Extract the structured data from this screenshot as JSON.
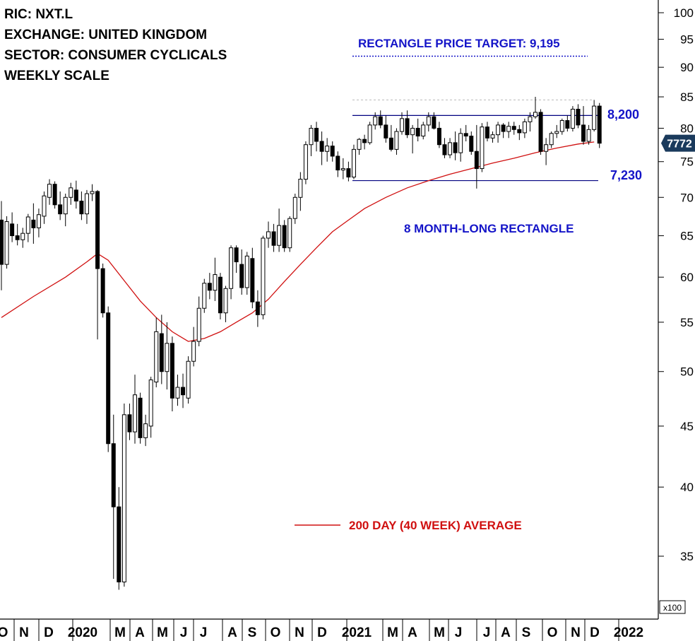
{
  "header": {
    "ric": "RIC: NXT.L",
    "exchange": "EXCHANGE: UNITED KINGDOM",
    "sector": "SECTOR: CONSUMER CYCLICALS",
    "scale": "WEEKLY SCALE"
  },
  "colors": {
    "candle": "#000000",
    "average": "#d01010",
    "annotation": "#1414c8",
    "rectangle": "#000080"
  },
  "chart_data": {
    "type": "candlestick",
    "y_scale": "log",
    "y_multiplier_label": "x100",
    "ylim": [
      32,
      104
    ],
    "y_ticks": [
      35,
      40,
      45,
      50,
      55,
      60,
      65,
      70,
      75,
      80,
      85,
      90,
      95,
      100
    ],
    "x_ticks": [
      "O",
      "N",
      "D",
      "2020",
      "M",
      "A",
      "M",
      "J",
      "J",
      "A",
      "S",
      "O",
      "N",
      "D",
      "2021",
      "M",
      "A",
      "M",
      "J",
      "J",
      "A",
      "S",
      "O",
      "N",
      "D",
      "2022"
    ],
    "last_price_label": "7772",
    "last_price": 77.72,
    "resistance": {
      "label": "8,200",
      "value": 82.0
    },
    "support": {
      "label": "7,230",
      "value": 72.3
    },
    "target": {
      "label": "RECTANGLE PRICE TARGET: 9,195",
      "value": 91.95
    },
    "rectangle_label": "8 MONTH-LONG RECTANGLE",
    "average_label": "200 DAY (40 WEEK) AVERAGE",
    "candles": [
      [
        67.0,
        69.5,
        58.5,
        61.5
      ],
      [
        61.5,
        67.5,
        61.0,
        66.8
      ],
      [
        66.5,
        68.0,
        64.2,
        65.0
      ],
      [
        65.0,
        66.5,
        63.8,
        64.5
      ],
      [
        64.5,
        66.0,
        63.5,
        65.3
      ],
      [
        65.3,
        67.8,
        64.2,
        67.4
      ],
      [
        67.0,
        69.2,
        64.0,
        66.0
      ],
      [
        66.0,
        68.5,
        64.8,
        67.7
      ],
      [
        67.5,
        70.8,
        66.5,
        70.2
      ],
      [
        70.0,
        72.5,
        69.0,
        71.8
      ],
      [
        71.8,
        72.2,
        68.5,
        69.0
      ],
      [
        69.0,
        70.8,
        67.0,
        67.8
      ],
      [
        67.8,
        70.5,
        66.2,
        70.0
      ],
      [
        70.0,
        72.0,
        69.0,
        71.3
      ],
      [
        71.0,
        72.3,
        68.5,
        69.5
      ],
      [
        69.5,
        70.8,
        67.0,
        67.8
      ],
      [
        67.8,
        71.0,
        66.5,
        70.5
      ],
      [
        70.5,
        71.8,
        69.5,
        70.8
      ],
      [
        70.8,
        71.0,
        53.2,
        61.0
      ],
      [
        61.0,
        61.6,
        55.5,
        56.0
      ],
      [
        56.0,
        56.7,
        42.8,
        43.5
      ],
      [
        43.5,
        46.0,
        33.5,
        38.5
      ],
      [
        38.5,
        40.0,
        32.8,
        33.3
      ],
      [
        33.3,
        47.0,
        33.0,
        46.0
      ],
      [
        46.0,
        47.0,
        43.8,
        44.5
      ],
      [
        44.5,
        49.7,
        43.5,
        47.8
      ],
      [
        47.5,
        48.0,
        43.5,
        44.0
      ],
      [
        44.0,
        46.0,
        43.3,
        45.2
      ],
      [
        45.0,
        49.5,
        44.0,
        49.2
      ],
      [
        49.0,
        55.5,
        48.5,
        54.0
      ],
      [
        53.8,
        55.8,
        48.8,
        50.0
      ],
      [
        50.0,
        55.0,
        48.3,
        52.8
      ],
      [
        52.8,
        53.5,
        46.3,
        47.5
      ],
      [
        47.5,
        49.7,
        46.8,
        48.5
      ],
      [
        48.5,
        49.8,
        46.6,
        47.8
      ],
      [
        47.5,
        51.5,
        47.0,
        51.0
      ],
      [
        51.0,
        54.5,
        50.5,
        53.0
      ],
      [
        53.0,
        57.8,
        52.5,
        56.5
      ],
      [
        56.5,
        59.8,
        56.0,
        59.3
      ],
      [
        59.3,
        60.5,
        57.5,
        58.5
      ],
      [
        58.5,
        62.3,
        57.3,
        60.3
      ],
      [
        60.0,
        60.5,
        55.3,
        56.0
      ],
      [
        56.0,
        59.0,
        55.0,
        58.7
      ],
      [
        58.7,
        63.8,
        57.5,
        63.5
      ],
      [
        63.5,
        63.8,
        60.5,
        61.8
      ],
      [
        61.5,
        63.3,
        58.0,
        58.8
      ],
      [
        58.8,
        63.0,
        58.0,
        62.5
      ],
      [
        62.2,
        63.5,
        56.5,
        57.2
      ],
      [
        57.2,
        58.5,
        54.5,
        55.8
      ],
      [
        55.8,
        65.0,
        55.3,
        64.7
      ],
      [
        64.7,
        66.8,
        63.5,
        65.5
      ],
      [
        65.5,
        66.5,
        63.0,
        63.8
      ],
      [
        63.8,
        68.5,
        63.0,
        66.3
      ],
      [
        66.3,
        67.0,
        63.0,
        63.5
      ],
      [
        63.5,
        67.5,
        63.0,
        67.2
      ],
      [
        67.2,
        70.5,
        66.5,
        70.0
      ],
      [
        70.0,
        73.5,
        68.2,
        72.5
      ],
      [
        72.5,
        78.0,
        71.8,
        77.5
      ],
      [
        77.5,
        80.5,
        75.8,
        80.0
      ],
      [
        80.0,
        81.0,
        76.5,
        78.0
      ],
      [
        78.0,
        79.5,
        74.5,
        76.5
      ],
      [
        76.5,
        78.5,
        75.0,
        77.3
      ],
      [
        77.3,
        78.0,
        75.0,
        75.8
      ],
      [
        75.8,
        76.5,
        72.8,
        73.8
      ],
      [
        73.8,
        75.5,
        72.5,
        74.0
      ],
      [
        74.0,
        75.0,
        72.2,
        72.8
      ],
      [
        72.8,
        77.5,
        72.5,
        76.8
      ],
      [
        76.8,
        78.5,
        76.0,
        78.3
      ],
      [
        78.3,
        79.0,
        76.8,
        77.8
      ],
      [
        77.8,
        81.0,
        77.5,
        80.5
      ],
      [
        80.5,
        82.5,
        79.8,
        81.8
      ],
      [
        81.8,
        82.8,
        80.0,
        80.5
      ],
      [
        80.5,
        82.0,
        77.8,
        78.5
      ],
      [
        78.5,
        80.5,
        76.5,
        76.8
      ],
      [
        76.8,
        80.0,
        76.0,
        79.5
      ],
      [
        79.5,
        82.5,
        79.0,
        81.5
      ],
      [
        81.5,
        82.8,
        78.5,
        79.0
      ],
      [
        79.0,
        80.5,
        76.2,
        80.0
      ],
      [
        80.0,
        81.5,
        78.0,
        78.8
      ],
      [
        78.8,
        81.0,
        78.3,
        80.5
      ],
      [
        80.5,
        82.5,
        79.5,
        81.8
      ],
      [
        81.8,
        82.5,
        79.8,
        80.0
      ],
      [
        80.0,
        81.0,
        77.0,
        77.5
      ],
      [
        77.5,
        78.5,
        75.5,
        76.0
      ],
      [
        76.0,
        78.5,
        75.5,
        77.8
      ],
      [
        77.8,
        79.5,
        75.2,
        76.3
      ],
      [
        76.3,
        80.0,
        75.0,
        79.2
      ],
      [
        79.2,
        80.5,
        78.0,
        78.8
      ],
      [
        78.8,
        79.5,
        76.0,
        76.5
      ],
      [
        76.5,
        80.5,
        71.2,
        74.0
      ],
      [
        74.0,
        80.8,
        73.5,
        80.2
      ],
      [
        80.2,
        81.0,
        78.0,
        78.5
      ],
      [
        78.5,
        79.5,
        77.8,
        79.0
      ],
      [
        79.0,
        81.0,
        77.8,
        80.5
      ],
      [
        80.5,
        80.8,
        78.5,
        79.5
      ],
      [
        79.5,
        81.0,
        78.5,
        80.3
      ],
      [
        80.3,
        81.0,
        79.0,
        79.8
      ],
      [
        79.8,
        80.5,
        78.2,
        79.3
      ],
      [
        79.3,
        81.5,
        78.5,
        81.0
      ],
      [
        81.0,
        82.5,
        79.5,
        81.8
      ],
      [
        81.8,
        85.0,
        81.5,
        82.5
      ],
      [
        82.5,
        83.0,
        76.0,
        76.5
      ],
      [
        76.5,
        78.5,
        74.5,
        77.5
      ],
      [
        77.5,
        79.5,
        77.0,
        79.2
      ],
      [
        79.2,
        80.5,
        78.5,
        79.5
      ],
      [
        79.5,
        81.5,
        79.0,
        81.2
      ],
      [
        81.2,
        82.0,
        79.5,
        80.0
      ],
      [
        80.0,
        83.5,
        79.5,
        83.0
      ],
      [
        83.0,
        83.8,
        80.0,
        80.5
      ],
      [
        80.5,
        83.5,
        77.5,
        78.0
      ],
      [
        78.0,
        80.5,
        77.5,
        79.8
      ],
      [
        79.8,
        84.5,
        79.5,
        83.5
      ],
      [
        83.5,
        84.0,
        77.0,
        77.72
      ]
    ],
    "average_200d": [
      [
        0,
        55.5
      ],
      [
        6,
        57.8
      ],
      [
        12,
        60.0
      ],
      [
        16,
        61.8
      ],
      [
        18,
        62.8
      ],
      [
        20,
        62.0
      ],
      [
        23,
        59.6
      ],
      [
        26,
        57.3
      ],
      [
        29,
        55.5
      ],
      [
        32,
        54.0
      ],
      [
        35,
        53.0
      ],
      [
        38,
        53.3
      ],
      [
        41,
        54.0
      ],
      [
        44,
        55.0
      ],
      [
        47,
        56.0
      ],
      [
        50,
        57.5
      ],
      [
        53,
        59.5
      ],
      [
        56,
        61.5
      ],
      [
        59,
        63.5
      ],
      [
        62,
        65.5
      ],
      [
        65,
        67.0
      ],
      [
        68,
        68.5
      ],
      [
        72,
        70.0
      ],
      [
        76,
        71.3
      ],
      [
        80,
        72.3
      ],
      [
        84,
        73.2
      ],
      [
        88,
        74.0
      ],
      [
        92,
        74.8
      ],
      [
        96,
        75.5
      ],
      [
        100,
        76.3
      ],
      [
        104,
        77.0
      ],
      [
        108,
        77.6
      ],
      [
        111,
        77.9
      ]
    ]
  }
}
